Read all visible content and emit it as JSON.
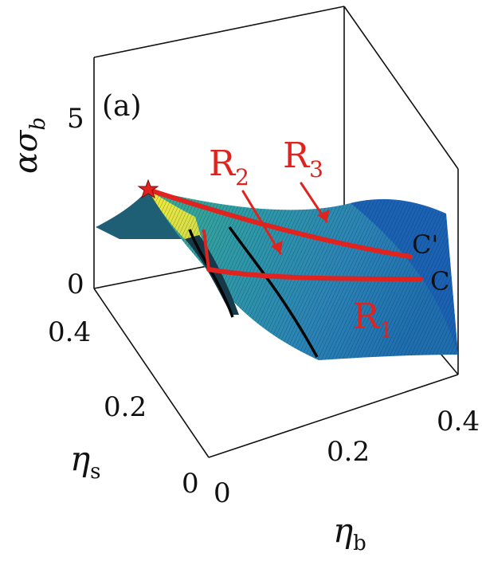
{
  "chart_data": {
    "type": "surface",
    "panel_label": "(a)",
    "axes": {
      "z": {
        "label": "ασ",
        "sub": "b",
        "ticks": [
          "0",
          "5"
        ]
      },
      "x": {
        "label": "η",
        "sub": "b",
        "ticks": [
          "0",
          "0.2",
          "0.4"
        ]
      },
      "y": {
        "label": "η",
        "sub": "s",
        "ticks": [
          "0",
          "0.2",
          "0.4"
        ]
      }
    },
    "curves": [
      {
        "name": "C",
        "label": "C"
      },
      {
        "name": "C'",
        "label": "C'"
      }
    ],
    "regions": [
      {
        "main": "R",
        "sub": "1"
      },
      {
        "main": "R",
        "sub": "2"
      },
      {
        "main": "R",
        "sub": "3"
      }
    ],
    "marker": {
      "shape": "star",
      "color": "#e0231e"
    },
    "colors": {
      "accent": "#e0231e",
      "surface_low": "#1f6fb0",
      "surface_high": "#f1e93a"
    }
  }
}
